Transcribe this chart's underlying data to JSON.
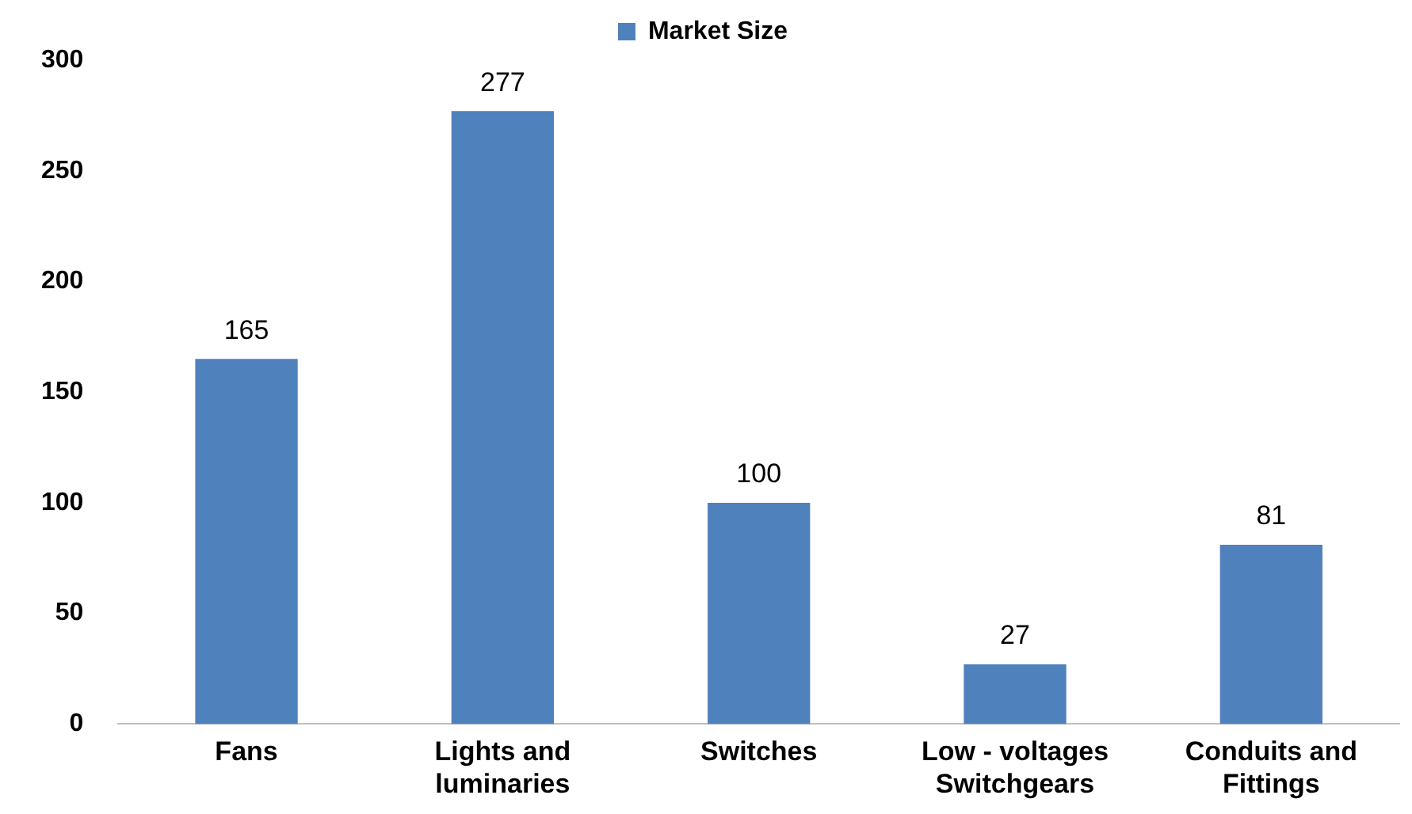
{
  "chart_data": {
    "type": "bar",
    "categories": [
      "Fans",
      "Lights and luminaries",
      "Switches",
      "Low - voltages Switchgears",
      "Conduits and Fittings"
    ],
    "series": [
      {
        "name": "Market Size",
        "color": "#4f81bd",
        "values": [
          165,
          277,
          100,
          27,
          81
        ]
      }
    ],
    "ylim": [
      0,
      300
    ],
    "yticks": [
      0,
      50,
      100,
      150,
      200,
      250,
      300
    ],
    "grid": false,
    "legend": "top",
    "data_labels": true
  }
}
